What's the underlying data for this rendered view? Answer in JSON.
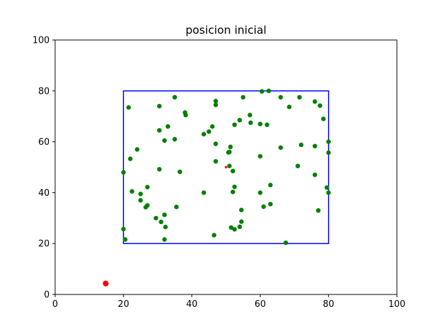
{
  "chart_data": {
    "type": "scatter",
    "title": "posicion inicial",
    "xlabel": "",
    "ylabel": "",
    "xlim": [
      0,
      100
    ],
    "ylim": [
      0,
      100
    ],
    "xticks": [
      0,
      20,
      40,
      60,
      80,
      100
    ],
    "yticks": [
      0,
      20,
      40,
      60,
      80,
      100
    ],
    "grid": false,
    "boundary_rectangle": {
      "x": [
        20,
        80
      ],
      "y": [
        20,
        80
      ],
      "color": "#0000ff"
    },
    "series": [
      {
        "color": "#008000",
        "points": [
          [
            21.5,
            73.5
          ],
          [
            30.5,
            74
          ],
          [
            35,
            77.5
          ],
          [
            38,
            71.5
          ],
          [
            38.2,
            70.5
          ],
          [
            47,
            76
          ],
          [
            47,
            74.5
          ],
          [
            55,
            77.5
          ],
          [
            60.5,
            79.8
          ],
          [
            62.5,
            80
          ],
          [
            66,
            77.5
          ],
          [
            68.5,
            73.7
          ],
          [
            71.5,
            77.5
          ],
          [
            76,
            75.8
          ],
          [
            77.5,
            74.2
          ],
          [
            78.5,
            69
          ],
          [
            80,
            60
          ],
          [
            80,
            55.7
          ],
          [
            76,
            58.3
          ],
          [
            72,
            58.8
          ],
          [
            66,
            57.7
          ],
          [
            57,
            70.5
          ],
          [
            57.2,
            67.5
          ],
          [
            60,
            67
          ],
          [
            62,
            66.7
          ],
          [
            52.5,
            66.7
          ],
          [
            54,
            68.5
          ],
          [
            46,
            66
          ],
          [
            45,
            64
          ],
          [
            43.5,
            63
          ],
          [
            33,
            66
          ],
          [
            30.5,
            64.5
          ],
          [
            32,
            60.5
          ],
          [
            35,
            61
          ],
          [
            24,
            57
          ],
          [
            22,
            53.3
          ],
          [
            20,
            48
          ],
          [
            30.5,
            49.2
          ],
          [
            36.5,
            48.2
          ],
          [
            47,
            59.2
          ],
          [
            51,
            56
          ],
          [
            50.7,
            55.8
          ],
          [
            51.3,
            58
          ],
          [
            47,
            52.3
          ],
          [
            51,
            50.5
          ],
          [
            52,
            48.5
          ],
          [
            60,
            54.3
          ],
          [
            71,
            50.5
          ],
          [
            76,
            47
          ],
          [
            79.5,
            42
          ],
          [
            80,
            40
          ],
          [
            77,
            33
          ],
          [
            63,
            43
          ],
          [
            60,
            40
          ],
          [
            61,
            34.5
          ],
          [
            63,
            35.5
          ],
          [
            52,
            40.3
          ],
          [
            52.5,
            42.3
          ],
          [
            54.5,
            33.2
          ],
          [
            43.5,
            40
          ],
          [
            35.5,
            34.4
          ],
          [
            22.5,
            40.5
          ],
          [
            25,
            39.5
          ],
          [
            27,
            42.2
          ],
          [
            25,
            37
          ],
          [
            27,
            35
          ],
          [
            26.5,
            34.3
          ],
          [
            29.5,
            30
          ],
          [
            31,
            28.5
          ],
          [
            32,
            31.3
          ],
          [
            32.3,
            26.5
          ],
          [
            32,
            21.6
          ],
          [
            20,
            25.7
          ],
          [
            20.5,
            21.6
          ],
          [
            46.5,
            23.3
          ],
          [
            51.5,
            26.3
          ],
          [
            52.5,
            25.6
          ],
          [
            54,
            26.6
          ],
          [
            54.5,
            28.6
          ],
          [
            67.5,
            20.3
          ]
        ]
      },
      {
        "color": "#ff0000",
        "points": [
          [
            50,
            50
          ]
        ]
      },
      {
        "color": "#ff0000",
        "points": [
          [
            14.8,
            4.3
          ]
        ]
      }
    ]
  }
}
